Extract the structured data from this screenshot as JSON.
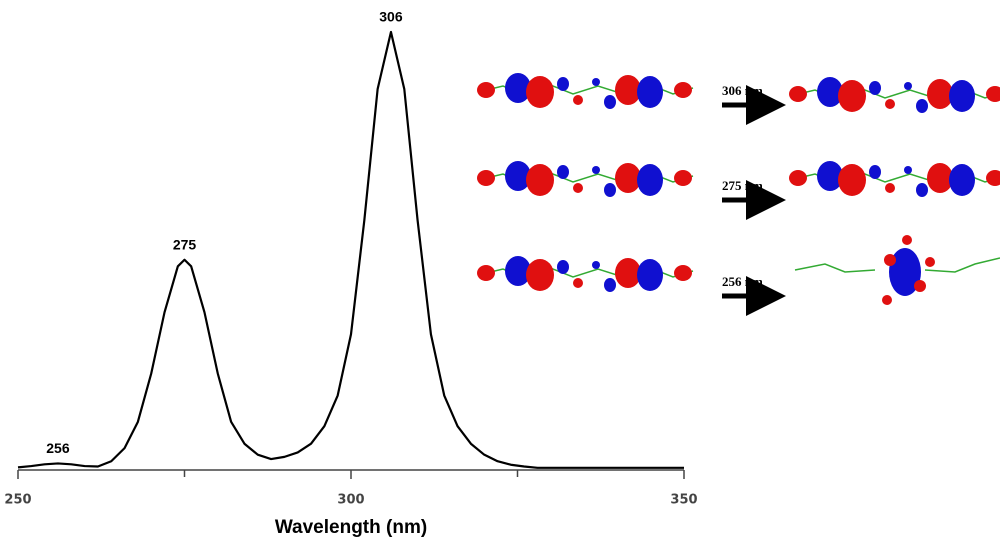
{
  "chart_data": {
    "type": "line",
    "xlabel": "Wavelength (nm)",
    "x": [
      250,
      252,
      254,
      256,
      258,
      260,
      262,
      264,
      266,
      268,
      270,
      272,
      274,
      275,
      276,
      278,
      280,
      282,
      284,
      286,
      288,
      290,
      292,
      294,
      296,
      298,
      300,
      302,
      304,
      306,
      308,
      310,
      312,
      314,
      316,
      318,
      320,
      322,
      324,
      326,
      328,
      330,
      335,
      340,
      345,
      350
    ],
    "series": [
      {
        "color": "#000000",
        "values": [
          0.006,
          0.009,
          0.013,
          0.015,
          0.013,
          0.009,
          0.008,
          0.02,
          0.05,
          0.11,
          0.22,
          0.36,
          0.465,
          0.48,
          0.465,
          0.36,
          0.22,
          0.11,
          0.06,
          0.035,
          0.025,
          0.03,
          0.04,
          0.06,
          0.1,
          0.17,
          0.31,
          0.57,
          0.87,
          1.0,
          0.87,
          0.57,
          0.31,
          0.17,
          0.1,
          0.06,
          0.035,
          0.02,
          0.012,
          0.008,
          0.005,
          0.005,
          0.005,
          0.005,
          0.005,
          0.005
        ]
      }
    ],
    "peaks": {
      "x": [
        256,
        275,
        306
      ],
      "y": [
        0.015,
        0.48,
        1.0
      ]
    },
    "xlim": [
      250,
      350
    ],
    "xticks": [
      250,
      300,
      350
    ],
    "xminorticks": [
      275,
      325
    ],
    "ylim": [
      0,
      1
    ],
    "transitions": [
      "306 nm",
      "275 nm",
      "256 nm"
    ]
  }
}
